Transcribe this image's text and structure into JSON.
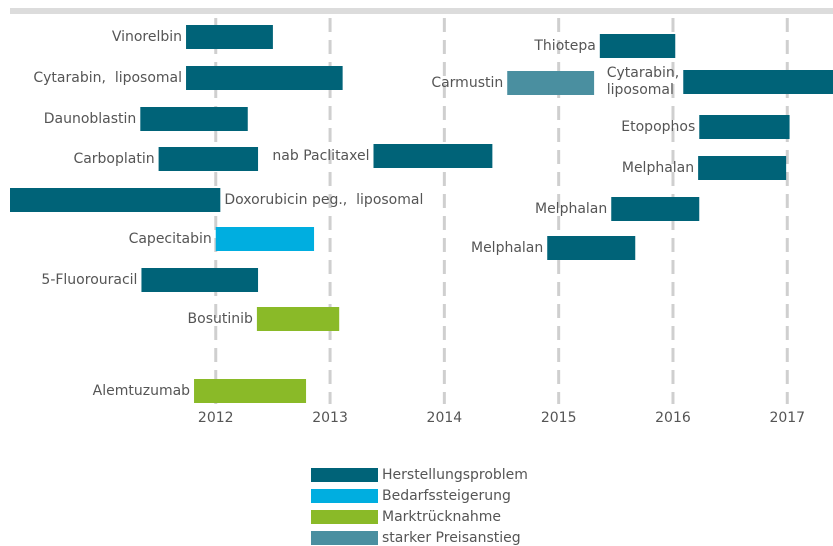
{
  "chart_data": {
    "type": "timeline",
    "xlim": [
      2010.2,
      2017.4
    ],
    "xticks": [
      2012,
      2013,
      2014,
      2015,
      2016,
      2017
    ],
    "grid": true,
    "series": [
      {
        "name": "Herstellungsproblem",
        "color": "#006378",
        "items": [
          {
            "label": "Vinorelbin",
            "start": 2011.74,
            "end": 2012.5
          },
          {
            "label": "Cytarabin,  liposomal",
            "start": 2011.74,
            "end": 2013.11
          },
          {
            "label": "Daunoblastin",
            "start": 2011.34,
            "end": 2012.28
          },
          {
            "label": "Carboplatin",
            "start": 2011.5,
            "end": 2012.37
          },
          {
            "label": "Doxorubicin peg.,  liposomal",
            "start": 2010.2,
            "end": 2012.04
          },
          {
            "label": "5-Fluorouracil",
            "start": 2011.35,
            "end": 2012.37
          },
          {
            "label": "nab Paclitaxel",
            "start": 2013.38,
            "end": 2014.42
          },
          {
            "label": "Thiotepa",
            "start": 2015.36,
            "end": 2016.02
          },
          {
            "label": "Cytarabin,\nliposomal",
            "start": 2016.09,
            "end": 2017.4
          },
          {
            "label": "Etopophos",
            "start": 2016.23,
            "end": 2017.02
          },
          {
            "label": "Melphalan",
            "start": 2016.22,
            "end": 2016.99
          },
          {
            "label": "Melphalan",
            "start": 2015.46,
            "end": 2016.23
          },
          {
            "label": "Melphalan",
            "start": 2014.9,
            "end": 2015.67
          }
        ]
      },
      {
        "name": "Bedarfssteigerung",
        "color": "#00aee0",
        "items": [
          {
            "label": "Capecitabin",
            "start": 2012.0,
            "end": 2012.86
          }
        ]
      },
      {
        "name": "Marktrücknahme",
        "color": "#8aba28",
        "items": [
          {
            "label": "Bosutinib",
            "start": 2012.36,
            "end": 2013.08
          },
          {
            "label": "Alemtuzumab",
            "start": 2011.81,
            "end": 2012.79
          }
        ]
      },
      {
        "name": "starker Preisanstieg",
        "color": "#4a8fa0",
        "items": [
          {
            "label": "Carmustin",
            "start": 2014.55,
            "end": 2015.31
          }
        ]
      }
    ]
  }
}
